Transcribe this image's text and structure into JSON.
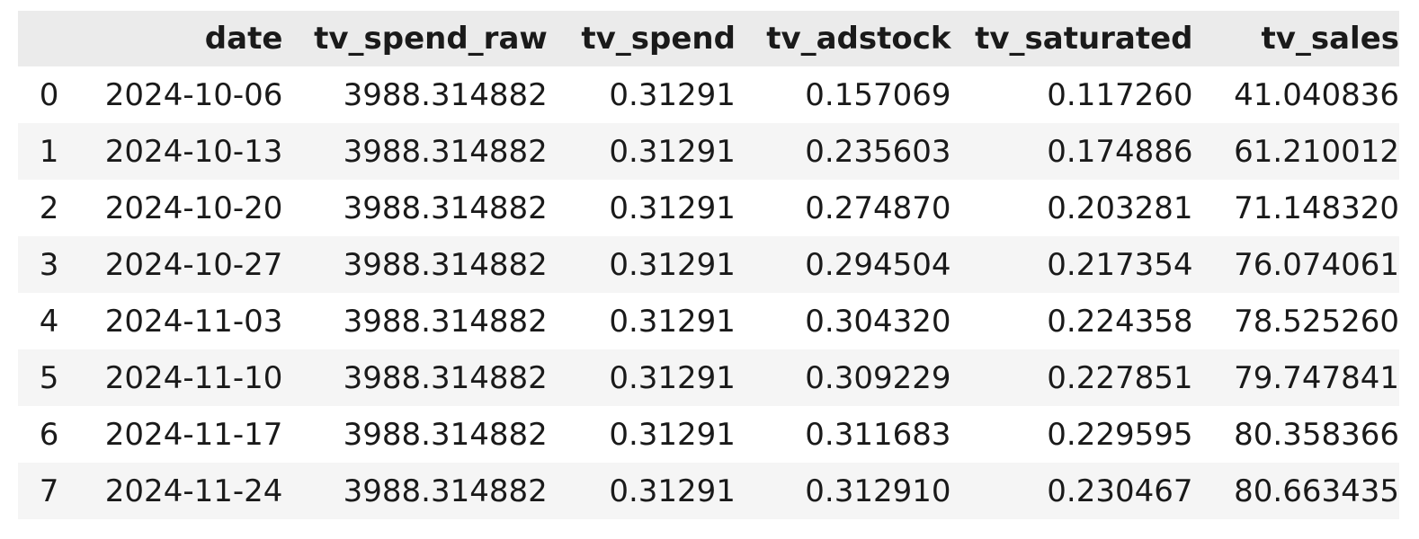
{
  "table": {
    "columns": [
      "",
      "date",
      "tv_spend_raw",
      "tv_spend",
      "tv_adstock",
      "tv_saturated",
      "tv_sales"
    ],
    "rows": [
      {
        "index": "0",
        "date": "2024-10-06",
        "tv_spend_raw": "3988.314882",
        "tv_spend": "0.31291",
        "tv_adstock": "0.157069",
        "tv_saturated": "0.117260",
        "tv_sales": "41.040836"
      },
      {
        "index": "1",
        "date": "2024-10-13",
        "tv_spend_raw": "3988.314882",
        "tv_spend": "0.31291",
        "tv_adstock": "0.235603",
        "tv_saturated": "0.174886",
        "tv_sales": "61.210012"
      },
      {
        "index": "2",
        "date": "2024-10-20",
        "tv_spend_raw": "3988.314882",
        "tv_spend": "0.31291",
        "tv_adstock": "0.274870",
        "tv_saturated": "0.203281",
        "tv_sales": "71.148320"
      },
      {
        "index": "3",
        "date": "2024-10-27",
        "tv_spend_raw": "3988.314882",
        "tv_spend": "0.31291",
        "tv_adstock": "0.294504",
        "tv_saturated": "0.217354",
        "tv_sales": "76.074061"
      },
      {
        "index": "4",
        "date": "2024-11-03",
        "tv_spend_raw": "3988.314882",
        "tv_spend": "0.31291",
        "tv_adstock": "0.304320",
        "tv_saturated": "0.224358",
        "tv_sales": "78.525260"
      },
      {
        "index": "5",
        "date": "2024-11-10",
        "tv_spend_raw": "3988.314882",
        "tv_spend": "0.31291",
        "tv_adstock": "0.309229",
        "tv_saturated": "0.227851",
        "tv_sales": "79.747841"
      },
      {
        "index": "6",
        "date": "2024-11-17",
        "tv_spend_raw": "3988.314882",
        "tv_spend": "0.31291",
        "tv_adstock": "0.311683",
        "tv_saturated": "0.229595",
        "tv_sales": "80.358366"
      },
      {
        "index": "7",
        "date": "2024-11-24",
        "tv_spend_raw": "3988.314882",
        "tv_spend": "0.31291",
        "tv_adstock": "0.312910",
        "tv_saturated": "0.230467",
        "tv_sales": "80.663435"
      }
    ]
  },
  "colors": {
    "header_bg": "#ebebeb",
    "row_alt_bg": "#f5f5f5",
    "row_bg": "#ffffff",
    "text": "#1a1a1a"
  }
}
